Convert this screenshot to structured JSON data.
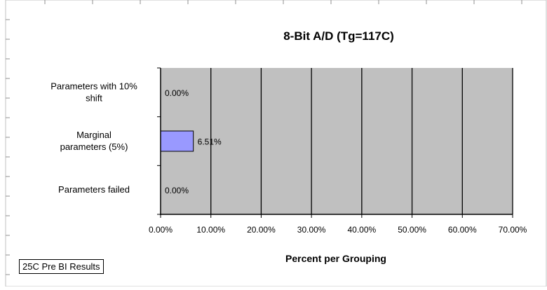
{
  "note": "25C Pre BI Results",
  "chart_data": {
    "type": "bar",
    "orientation": "horizontal",
    "title": "8-Bit A/D (Tg=117C)",
    "xlabel": "Percent per Grouping",
    "ylabel": "",
    "categories": [
      "Parameters with 10% shift",
      "Marginal parameters (5%)",
      "Parameters failed"
    ],
    "category_labels": [
      [
        "Parameters with 10%",
        "shift"
      ],
      [
        "Marginal",
        "parameters (5%)"
      ],
      [
        "Parameters failed"
      ]
    ],
    "values": [
      0.0,
      6.51,
      0.0
    ],
    "data_labels": [
      "0.00%",
      "6.51%",
      "0.00%"
    ],
    "xlim": [
      0,
      70
    ],
    "xticks": [
      0,
      10,
      20,
      30,
      40,
      50,
      60,
      70
    ],
    "xtick_labels": [
      "0.00%",
      "10.00%",
      "20.00%",
      "30.00%",
      "40.00%",
      "50.00%",
      "60.00%",
      "70.00%"
    ],
    "grid": true,
    "legend": "none",
    "colors": {
      "plot_background": "#c0c0c0",
      "bar_fill": "#9999ff",
      "gridline": "#000000",
      "outer_frame": "#c0c0c0"
    }
  }
}
